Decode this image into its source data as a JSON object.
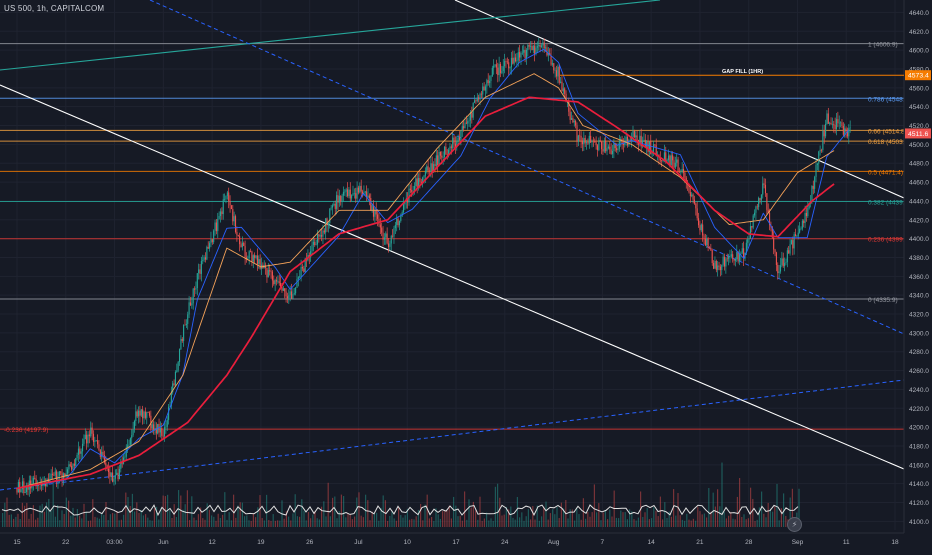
{
  "header": {
    "symbol": "US 500, 1h, CAPITALCOM"
  },
  "colors": {
    "background": "#161a25",
    "price_up": "#26a69a",
    "price_down": "#ef5350",
    "ma_red": "#e91e3c",
    "ma_orange": "#f4a259",
    "ma_blue": "#2962ff",
    "trendline": "#ffffff",
    "channel_teal": "#26a69a",
    "dashed_blue": "#2962ff",
    "fib_1": "#9598a1",
    "fib_0786": "#5b9cf6",
    "fib_066": "#f0a040",
    "fib_05": "#f57c00",
    "fib_0382": "#26a69a",
    "fib_0236": "#e53935",
    "fib_0": "#9598a1",
    "current_price_bg": "#ef5350",
    "gap_fill_bg": "#f57c00"
  },
  "price_axis": {
    "ticks": [
      4640.0,
      4620.0,
      4600.0,
      4580.0,
      4560.0,
      4540.0,
      4520.0,
      4500.0,
      4480.0,
      4460.0,
      4440.0,
      4420.0,
      4400.0,
      4380.0,
      4360.0,
      4340.0,
      4320.0,
      4300.0,
      4280.0,
      4260.0,
      4240.0,
      4220.0,
      4200.0,
      4180.0,
      4160.0,
      4140.0,
      4120.0,
      4100.0
    ],
    "current_price_label": "4511.6",
    "gap_fill_price_label": "4573.4"
  },
  "time_axis": {
    "labels": [
      "15",
      "22",
      "03:00",
      "Jun",
      "12",
      "19",
      "26",
      "Jul",
      "10",
      "17",
      "24",
      "Aug",
      "7",
      "14",
      "21",
      "28",
      "Sep",
      "11",
      "18"
    ]
  },
  "annotations": {
    "gap_fill": "GAP FILL (1HR)"
  },
  "chart_data": {
    "type": "line",
    "title": "US 500, 1h, CAPITALCOM",
    "ylim": [
      4095,
      4650
    ],
    "x_categories": [
      "15",
      "22",
      "03:00",
      "Jun",
      "12",
      "19",
      "26",
      "Jul",
      "10",
      "17",
      "24",
      "Aug",
      "7",
      "14",
      "21",
      "28",
      "Sep",
      "11",
      "18"
    ],
    "fib_levels": [
      {
        "label": "1 (4606.9)",
        "value": 4606.9,
        "colorKey": "fib_1"
      },
      {
        "label": "0.786 (4548.9)",
        "value": 4548.9,
        "colorKey": "fib_0786"
      },
      {
        "label": "0.66 (4514.8)",
        "value": 4514.8,
        "colorKey": "fib_066"
      },
      {
        "label": "0.618 (4503.4)",
        "value": 4503.4,
        "colorKey": "fib_066"
      },
      {
        "label": "0.5 (4471.4)",
        "value": 4471.4,
        "colorKey": "fib_05"
      },
      {
        "label": "0.382 (4439.4)",
        "value": 4439.4,
        "colorKey": "fib_0382"
      },
      {
        "label": "0.236 (4399.9)",
        "value": 4399.9,
        "colorKey": "fib_0236"
      },
      {
        "label": "0 (4335.9)",
        "value": 4335.9,
        "colorKey": "fib_0"
      },
      {
        "label": "-0.236 (4197.9)",
        "value": 4197.9,
        "colorKey": "fib_0236"
      }
    ],
    "price_path": [
      [
        0,
        4135
      ],
      [
        1,
        4150
      ],
      [
        1.5,
        4195
      ],
      [
        2,
        4140
      ],
      [
        2.5,
        4220
      ],
      [
        3,
        4190
      ],
      [
        3.4,
        4300
      ],
      [
        3.7,
        4360
      ],
      [
        4.3,
        4445
      ],
      [
        4.6,
        4390
      ],
      [
        5.3,
        4355
      ],
      [
        5.6,
        4340
      ],
      [
        6.6,
        4445
      ],
      [
        7.1,
        4450
      ],
      [
        7.6,
        4395
      ],
      [
        8.1,
        4455
      ],
      [
        9.1,
        4510
      ],
      [
        9.7,
        4575
      ],
      [
        10.3,
        4595
      ],
      [
        10.8,
        4605
      ],
      [
        11.1,
        4575
      ],
      [
        11.5,
        4505
      ],
      [
        12.3,
        4495
      ],
      [
        12.6,
        4510
      ],
      [
        13.6,
        4475
      ],
      [
        14.3,
        4370
      ],
      [
        14.9,
        4385
      ],
      [
        15.3,
        4455
      ],
      [
        15.6,
        4365
      ],
      [
        16.2,
        4425
      ],
      [
        16.6,
        4528
      ],
      [
        17.1,
        4512
      ]
    ],
    "ma_red_path": [
      [
        0,
        4135
      ],
      [
        1.5,
        4150
      ],
      [
        2.5,
        4170
      ],
      [
        3.5,
        4205
      ],
      [
        4.3,
        4255
      ],
      [
        4.8,
        4295
      ],
      [
        5.6,
        4365
      ],
      [
        6.6,
        4405
      ],
      [
        7.6,
        4420
      ],
      [
        8.6,
        4475
      ],
      [
        9.6,
        4530
      ],
      [
        10.5,
        4550
      ],
      [
        11.5,
        4545
      ],
      [
        12.3,
        4518
      ],
      [
        13.3,
        4482
      ],
      [
        14.3,
        4430
      ],
      [
        15.0,
        4405
      ],
      [
        15.6,
        4402
      ],
      [
        16.3,
        4440
      ],
      [
        16.8,
        4460
      ]
    ],
    "ma_orange_path": [
      [
        0,
        4135
      ],
      [
        1.5,
        4155
      ],
      [
        2.5,
        4185
      ],
      [
        3.4,
        4255
      ],
      [
        4.3,
        4390
      ],
      [
        5.0,
        4370
      ],
      [
        5.6,
        4375
      ],
      [
        6.6,
        4430
      ],
      [
        7.6,
        4430
      ],
      [
        8.6,
        4495
      ],
      [
        9.6,
        4550
      ],
      [
        10.6,
        4575
      ],
      [
        11.1,
        4560
      ],
      [
        11.6,
        4520
      ],
      [
        12.6,
        4500
      ],
      [
        13.6,
        4465
      ],
      [
        14.6,
        4415
      ],
      [
        15.3,
        4420
      ],
      [
        16.0,
        4470
      ],
      [
        16.8,
        4495
      ]
    ]
  }
}
